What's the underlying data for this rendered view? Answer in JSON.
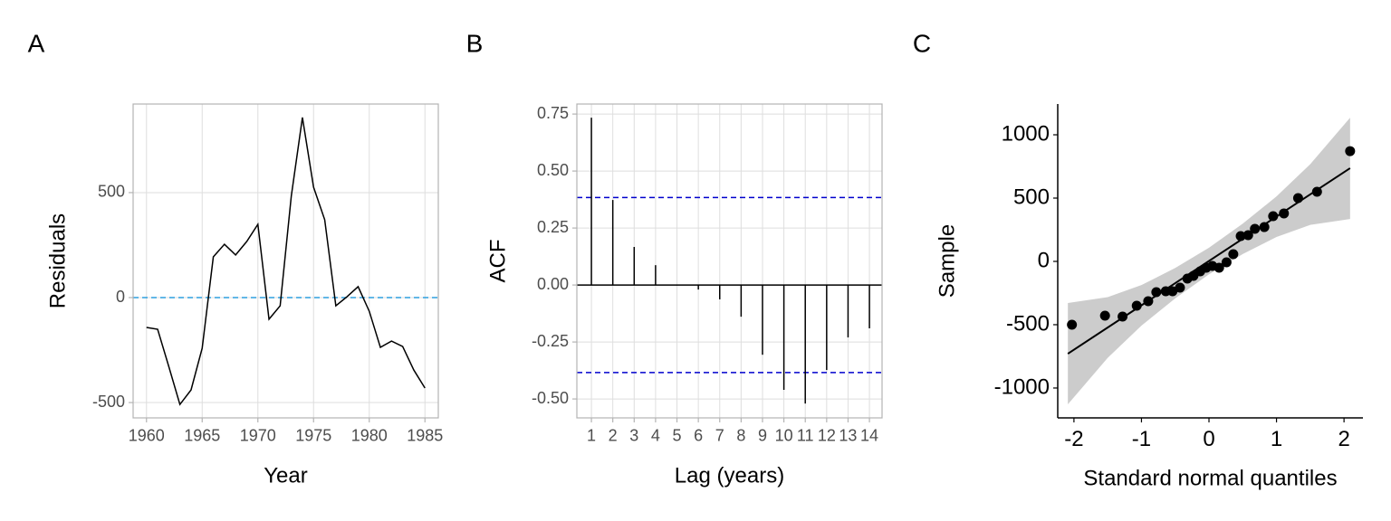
{
  "chart_data": [
    {
      "type": "line",
      "tag": "A",
      "x_label": "Year",
      "y_label": "Residuals",
      "x": [
        1960,
        1961,
        1962,
        1963,
        1964,
        1965,
        1966,
        1967,
        1968,
        1969,
        1970,
        1971,
        1972,
        1973,
        1974,
        1975,
        1976,
        1977,
        1978,
        1979,
        1980,
        1981,
        1982,
        1983,
        1984,
        1985
      ],
      "series": [
        {
          "color": "#000000",
          "values": [
            -142,
            -151,
            -328,
            -509,
            -440,
            -241,
            194,
            254,
            203,
            267,
            349,
            -103,
            -39,
            483,
            858,
            526,
            371,
            -39,
            4,
            52,
            -65,
            -237,
            -207,
            -233,
            -345,
            -431
          ]
        }
      ],
      "xlim": [
        1958.8,
        1986.2
      ],
      "ylim": [
        -573,
        922
      ],
      "xticks": [
        1960,
        1965,
        1970,
        1975,
        1980,
        1985
      ],
      "yticks": [
        -500,
        0,
        500
      ],
      "grid": true,
      "box": true,
      "reference_lines": [
        {
          "value": 0,
          "color": "#2e9fdf",
          "dashed": true
        }
      ]
    },
    {
      "type": "bar",
      "tag": "B",
      "x_label": "Lag (years)",
      "y_label": "ACF",
      "x": [
        1,
        2,
        3,
        4,
        5,
        6,
        7,
        8,
        9,
        10,
        11,
        12,
        13,
        14
      ],
      "series": [
        {
          "color": "#000000",
          "values": [
            0.734,
            0.373,
            0.167,
            0.087,
            -0.002,
            -0.02,
            -0.063,
            -0.139,
            -0.306,
            -0.46,
            -0.52,
            -0.373,
            -0.23,
            -0.19
          ]
        }
      ],
      "xlim": [
        0.32,
        14.59
      ],
      "ylim": [
        -0.583,
        0.794
      ],
      "xticks": [
        1,
        2,
        3,
        4,
        5,
        6,
        7,
        8,
        9,
        10,
        11,
        12,
        13,
        14
      ],
      "yticks": [
        {
          "value": -0.5,
          "label": "-0.50"
        },
        -0.25,
        {
          "value": 0,
          "label": "0.00"
        },
        0.25,
        {
          "value": 0.5,
          "label": "0.50"
        },
        0.75
      ],
      "grid": true,
      "box": true,
      "reference_lines": [
        {
          "value": 0.384,
          "color": "#0000cd",
          "dashed": true
        },
        {
          "value": -0.384,
          "color": "#0000cd",
          "dashed": true
        },
        {
          "value": 0,
          "color": "#000000",
          "dashed": false
        }
      ]
    },
    {
      "type": "scatter",
      "tag": "C",
      "x_label": "Standard normal quantiles",
      "y_label": "Sample",
      "x": [
        -2.03,
        -1.54,
        -1.28,
        -1.07,
        -0.9,
        -0.78,
        -0.64,
        -0.54,
        -0.43,
        -0.32,
        -0.23,
        -0.13,
        -0.04,
        0.05,
        0.15,
        0.26,
        0.36,
        0.47,
        0.58,
        0.68,
        0.82,
        0.95,
        1.11,
        1.32,
        1.6,
        2.09
      ],
      "series": [
        {
          "color": "#000000",
          "values": [
            -500,
            -429,
            -436,
            -350,
            -314,
            -243,
            -236,
            -236,
            -207,
            -136,
            -114,
            -79,
            -50,
            -36,
            -50,
            -7,
            57,
            200,
            207,
            257,
            271,
            357,
            379,
            500,
            550,
            871
          ]
        }
      ],
      "fit_line": {
        "color": "#000000",
        "x": [
          -2.09,
          2.09
        ],
        "y": [
          -729,
          736
        ]
      },
      "band": {
        "color": "#cccccc",
        "x": [
          -2.09,
          -1.5,
          -1,
          -0.5,
          0,
          0.5,
          1,
          1.5,
          2.09
        ],
        "lower": [
          -1129,
          -762,
          -507,
          -292,
          -102,
          58,
          193,
          288,
          335
        ],
        "upper": [
          -329,
          -282,
          -187,
          -52,
          108,
          298,
          513,
          768,
          1135
        ]
      },
      "xlim": [
        -2.24,
        2.28
      ],
      "ylim": [
        -1236,
        1243
      ],
      "xticks": [
        -2,
        -1,
        0,
        1,
        2
      ],
      "yticks": [
        -1000,
        -500,
        0,
        500,
        1000
      ],
      "grid": false,
      "box": false
    }
  ]
}
